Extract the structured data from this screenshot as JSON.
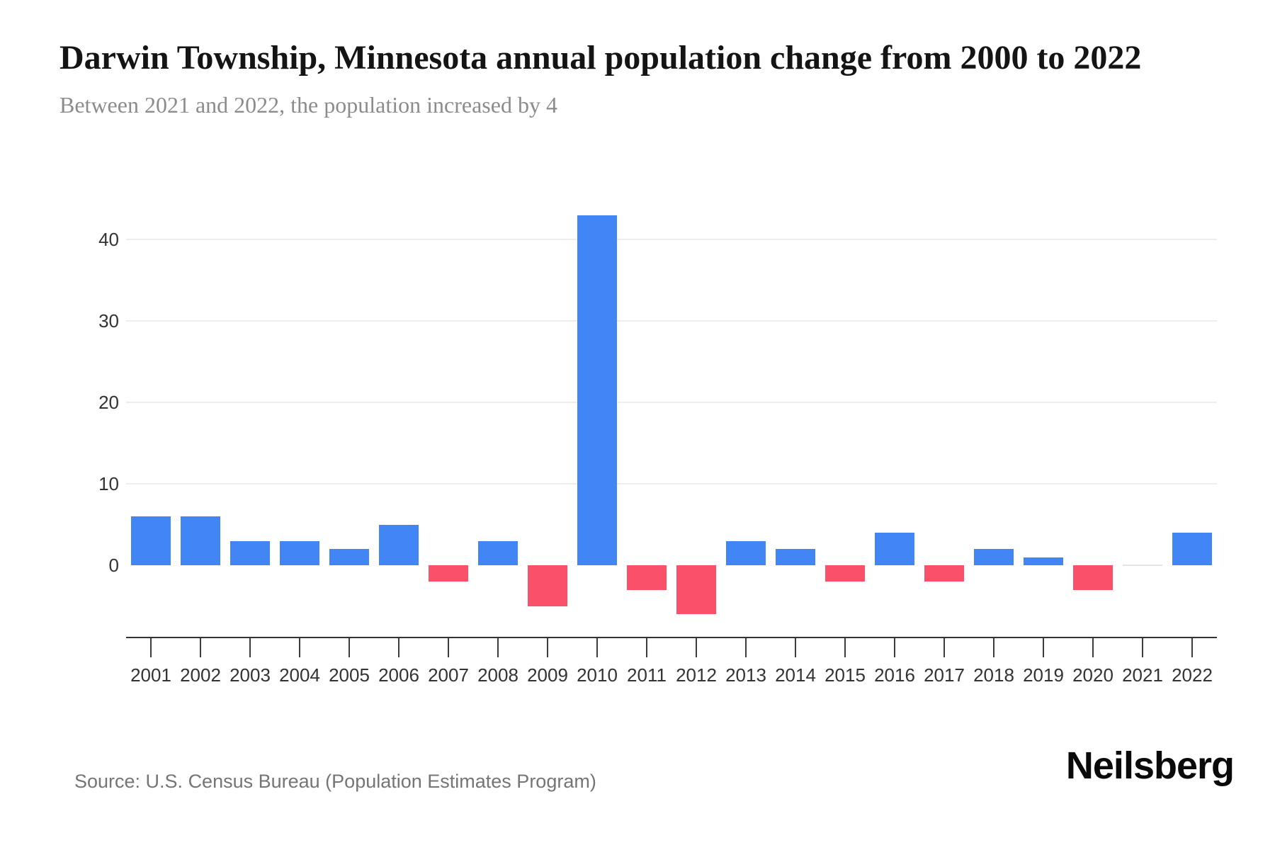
{
  "header": {
    "title": "Darwin Township, Minnesota annual population change from 2000 to 2022",
    "subtitle": "Between 2021 and 2022, the population increased by 4"
  },
  "chart_data": {
    "type": "bar",
    "title": "Darwin Township, Minnesota annual population change from 2000 to 2022",
    "subtitle": "Between 2021 and 2022, the population increased by 4",
    "categories": [
      "2001",
      "2002",
      "2003",
      "2004",
      "2005",
      "2006",
      "2007",
      "2008",
      "2009",
      "2010",
      "2011",
      "2012",
      "2013",
      "2014",
      "2015",
      "2016",
      "2017",
      "2018",
      "2019",
      "2020",
      "2021",
      "2022"
    ],
    "values": [
      6,
      6,
      3,
      3,
      2,
      5,
      -2,
      3,
      -5,
      43,
      -3,
      -6,
      3,
      2,
      -2,
      4,
      -2,
      2,
      1,
      -3,
      0,
      4
    ],
    "yticks": [
      0,
      10,
      20,
      30,
      40
    ],
    "ylim": [
      -8,
      45
    ],
    "xlabel": "",
    "ylabel": "",
    "grid": true,
    "legend": false,
    "colors": {
      "positive": "#4285f4",
      "negative": "#fa5069",
      "zero": "#e4e4e4",
      "gridline": "#eeeeee",
      "axis": "#333333",
      "tick_label": "#333333"
    }
  },
  "footer": {
    "source": "Source: U.S. Census Bureau (Population Estimates Program)",
    "brand": "Neilsberg"
  }
}
